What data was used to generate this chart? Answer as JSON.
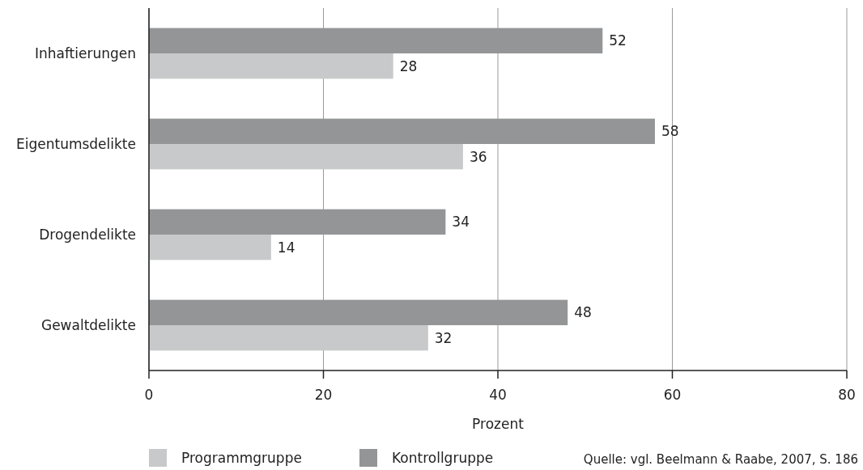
{
  "chart_data": {
    "type": "bar",
    "orientation": "horizontal",
    "categories": [
      "Inhaftierungen",
      "Eigentumsdelikte",
      "Drogendelikte",
      "Gewaltdelikte"
    ],
    "series": [
      {
        "name": "Programmgruppe",
        "color": "#c8c9ca",
        "values": [
          28,
          36,
          14,
          32
        ]
      },
      {
        "name": "Kontrollgruppe",
        "color": "#949597",
        "values": [
          52,
          58,
          34,
          48
        ]
      }
    ],
    "xlim": [
      0,
      80
    ],
    "xticks": [
      0,
      20,
      40,
      60,
      80
    ],
    "xlabel": "Prozent",
    "grid": "x",
    "legend": "bottom left",
    "data_labels": true,
    "annotations": [
      "Quelle: vgl. Beelmann & Raabe, 2007, S. 186"
    ]
  }
}
